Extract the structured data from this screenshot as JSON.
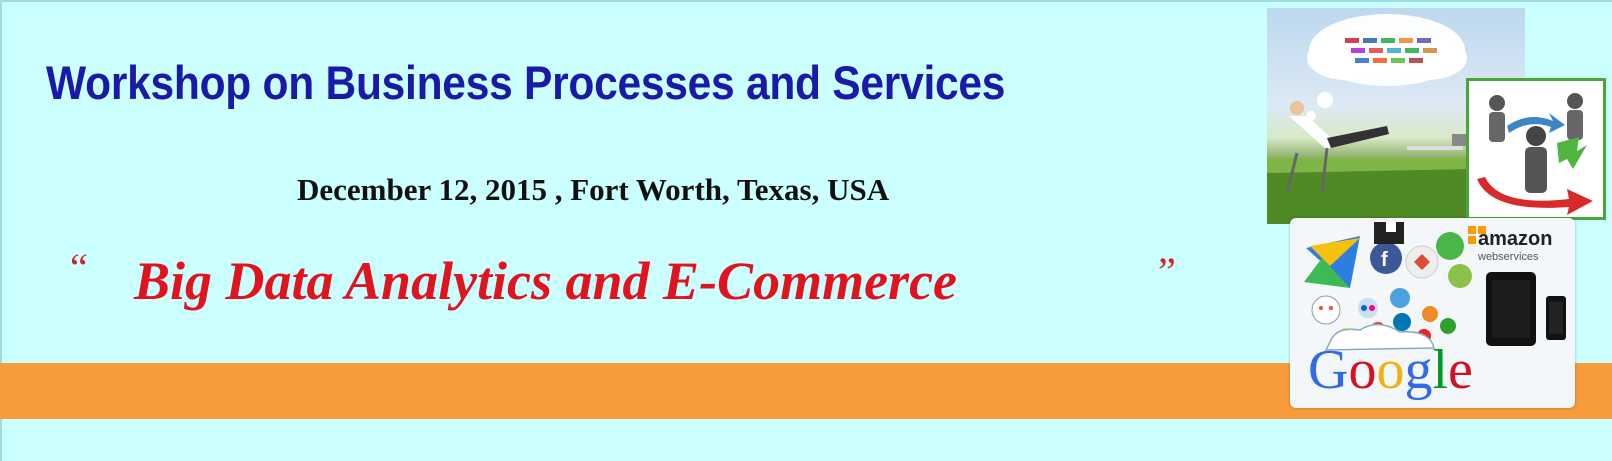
{
  "banner": {
    "title": "Workshop on Business Processes and Services",
    "date_location": "December 12, 2015 , Fort Worth, Texas, USA",
    "theme": "Big Data Analytics and E-Commerce",
    "quote_open": "“",
    "quote_close": "”"
  },
  "collage": {
    "google_logo": "Google",
    "amazon_logo": "amazon",
    "amazon_sub": "webservices"
  },
  "colors": {
    "background": "#ccffff",
    "title": "#1a1aa8",
    "theme": "#e0141e",
    "stripe": "#f89b3a"
  }
}
